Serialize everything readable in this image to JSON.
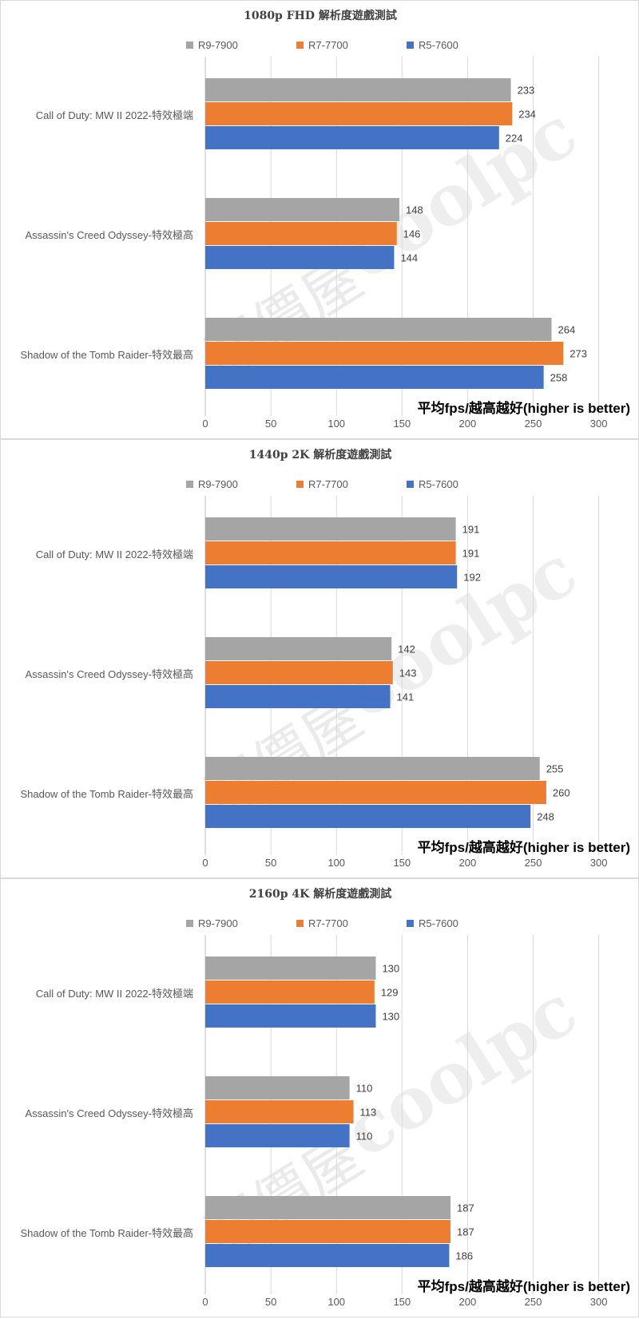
{
  "series_colors": {
    "R9-7900": "#a5a5a5",
    "R7-7700": "#ed7d31",
    "R5-7600": "#4472c4"
  },
  "chart_data": [
    {
      "type": "bar",
      "orientation": "horizontal",
      "title": "1080p FHD 解析度遊戲測試",
      "categories": [
        "Call of Duty: MW II 2022-特效極端",
        "Assassin's Creed Odyssey-特效極高",
        "Shadow of the Tomb Raider-特效最高"
      ],
      "series": [
        {
          "name": "R9-7900",
          "values": [
            233,
            148,
            264
          ]
        },
        {
          "name": "R7-7700",
          "values": [
            234,
            146,
            273
          ]
        },
        {
          "name": "R5-7600",
          "values": [
            224,
            144,
            258
          ]
        }
      ],
      "xlim": [
        0,
        300
      ],
      "xticks": [
        0,
        50,
        100,
        150,
        200,
        250,
        300
      ],
      "xlabel": "平均fps/越高越好(higher is better)",
      "legend": "top",
      "grid": true
    },
    {
      "type": "bar",
      "orientation": "horizontal",
      "title": "1440p 2K 解析度遊戲測試",
      "categories": [
        "Call of Duty: MW II 2022-特效極端",
        "Assassin's Creed Odyssey-特效極高",
        "Shadow of the Tomb Raider-特效最高"
      ],
      "series": [
        {
          "name": "R9-7900",
          "values": [
            191,
            142,
            255
          ]
        },
        {
          "name": "R7-7700",
          "values": [
            191,
            143,
            260
          ]
        },
        {
          "name": "R5-7600",
          "values": [
            192,
            141,
            248
          ]
        }
      ],
      "xlim": [
        0,
        300
      ],
      "xticks": [
        0,
        50,
        100,
        150,
        200,
        250,
        300
      ],
      "xlabel": "平均fps/越高越好(higher is better)",
      "legend": "top",
      "grid": true
    },
    {
      "type": "bar",
      "orientation": "horizontal",
      "title": "2160p 4K 解析度遊戲測試",
      "categories": [
        "Call of Duty: MW II 2022-特效極端",
        "Assassin's Creed Odyssey-特效極高",
        "Shadow of the Tomb Raider-特效最高"
      ],
      "series": [
        {
          "name": "R9-7900",
          "values": [
            130,
            110,
            187
          ]
        },
        {
          "name": "R7-7700",
          "values": [
            129,
            113,
            187
          ]
        },
        {
          "name": "R5-7600",
          "values": [
            130,
            110,
            186
          ]
        }
      ],
      "xlim": [
        0,
        300
      ],
      "xticks": [
        0,
        50,
        100,
        150,
        200,
        250,
        300
      ],
      "xlabel": "平均fps/越高越好(higher is better)",
      "legend": "top",
      "grid": true
    }
  ],
  "watermark": {
    "text_cjk": "原價屋",
    "text_latin": "coolpc"
  }
}
